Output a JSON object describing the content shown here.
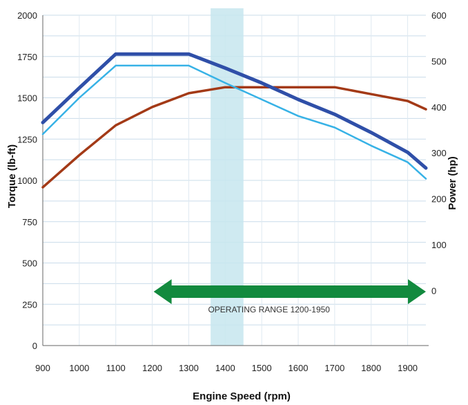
{
  "chart_data": {
    "type": "line",
    "title": "",
    "xlabel": "Engine Speed (rpm)",
    "ylabel_left": "Torque (lb-ft)",
    "ylabel_right": "Power (hp)",
    "x_ticks": [
      900,
      1000,
      1100,
      1200,
      1300,
      1400,
      1500,
      1600,
      1700,
      1800,
      1900
    ],
    "x_range": [
      900,
      1950
    ],
    "y_left_ticks": [
      0,
      250,
      500,
      750,
      1000,
      1250,
      1500,
      1750,
      2000
    ],
    "y_left_range": [
      0,
      2000
    ],
    "y_right_ticks": [
      0,
      100,
      200,
      300,
      400,
      500,
      600
    ],
    "y_right_range": [
      -120,
      600
    ],
    "grid": true,
    "operating_range_label": "OPERATING RANGE 1200-1950",
    "operating_range_x": [
      1200,
      1950
    ],
    "highlight_band_x": [
      1360,
      1450
    ],
    "series": [
      {
        "axis": "right",
        "color": "#a33a17",
        "x": [
          900,
          1000,
          1100,
          1200,
          1300,
          1400,
          1500,
          1600,
          1700,
          1800,
          1900,
          1950
        ],
        "y": [
          225,
          295,
          360,
          400,
          430,
          443,
          443,
          443,
          443,
          428,
          413,
          395
        ]
      },
      {
        "axis": "left",
        "color": "#2f4fa8",
        "x": [
          900,
          1000,
          1100,
          1200,
          1300,
          1400,
          1500,
          1600,
          1700,
          1800,
          1900,
          1950
        ],
        "y": [
          1350,
          1560,
          1765,
          1765,
          1765,
          1680,
          1590,
          1490,
          1400,
          1290,
          1170,
          1075
        ]
      },
      {
        "axis": "left",
        "color": "#37b2e6",
        "x": [
          900,
          1000,
          1100,
          1200,
          1300,
          1400,
          1500,
          1600,
          1700,
          1800,
          1900,
          1950
        ],
        "y": [
          1280,
          1500,
          1695,
          1695,
          1695,
          1590,
          1490,
          1390,
          1320,
          1210,
          1110,
          1010
        ]
      }
    ]
  }
}
